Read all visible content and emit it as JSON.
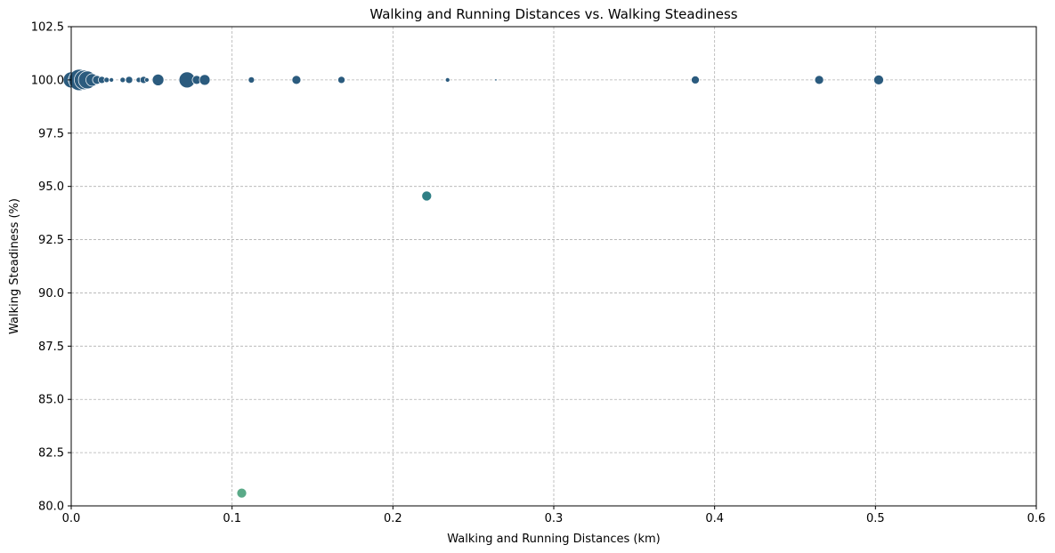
{
  "chart_data": {
    "type": "scatter",
    "title": "Walking and Running Distances vs. Walking Steadiness",
    "xlabel": "Walking and Running Distances (km)",
    "ylabel": "Walking Steadiness (%)",
    "xlim": [
      0.0,
      0.6
    ],
    "ylim": [
      80.0,
      102.5
    ],
    "xticks": [
      "0.0",
      "0.1",
      "0.2",
      "0.3",
      "0.4",
      "0.5",
      "0.6"
    ],
    "yticks": [
      "80.0",
      "82.5",
      "85.0",
      "87.5",
      "90.0",
      "92.5",
      "95.0",
      "97.5",
      "100.0",
      "102.5"
    ],
    "grid": true,
    "colors": {
      "high": "#2b5b7e",
      "mid": "#2f7f85",
      "low": "#5aaa88"
    },
    "points": [
      {
        "x": 0.0,
        "y": 100.0,
        "s": 9,
        "c": "high"
      },
      {
        "x": 0.002,
        "y": 100.0,
        "s": 7,
        "c": "high"
      },
      {
        "x": 0.005,
        "y": 100.0,
        "s": 12,
        "c": "high"
      },
      {
        "x": 0.008,
        "y": 100.0,
        "s": 11,
        "c": "high"
      },
      {
        "x": 0.01,
        "y": 100.0,
        "s": 10,
        "c": "high"
      },
      {
        "x": 0.013,
        "y": 100.0,
        "s": 7,
        "c": "high"
      },
      {
        "x": 0.016,
        "y": 100.0,
        "s": 5,
        "c": "high"
      },
      {
        "x": 0.019,
        "y": 100.0,
        "s": 4,
        "c": "high"
      },
      {
        "x": 0.022,
        "y": 100.0,
        "s": 3,
        "c": "high"
      },
      {
        "x": 0.025,
        "y": 100.0,
        "s": 2.5,
        "c": "high"
      },
      {
        "x": 0.032,
        "y": 100.0,
        "s": 3,
        "c": "high"
      },
      {
        "x": 0.036,
        "y": 100.0,
        "s": 4,
        "c": "high"
      },
      {
        "x": 0.042,
        "y": 100.0,
        "s": 3,
        "c": "high"
      },
      {
        "x": 0.045,
        "y": 100.0,
        "s": 4,
        "c": "high"
      },
      {
        "x": 0.047,
        "y": 100.0,
        "s": 2.5,
        "c": "high"
      },
      {
        "x": 0.054,
        "y": 100.0,
        "s": 6.5,
        "c": "high"
      },
      {
        "x": 0.072,
        "y": 100.0,
        "s": 9,
        "c": "high"
      },
      {
        "x": 0.078,
        "y": 100.0,
        "s": 5,
        "c": "high"
      },
      {
        "x": 0.083,
        "y": 100.0,
        "s": 6,
        "c": "high"
      },
      {
        "x": 0.112,
        "y": 100.0,
        "s": 3.5,
        "c": "high"
      },
      {
        "x": 0.14,
        "y": 100.0,
        "s": 5,
        "c": "high"
      },
      {
        "x": 0.168,
        "y": 100.0,
        "s": 4,
        "c": "high"
      },
      {
        "x": 0.234,
        "y": 100.0,
        "s": 2.5,
        "c": "high"
      },
      {
        "x": 0.264,
        "y": 100.0,
        "s": 1.2,
        "c": "high"
      },
      {
        "x": 0.388,
        "y": 100.0,
        "s": 4.5,
        "c": "high"
      },
      {
        "x": 0.465,
        "y": 100.0,
        "s": 5,
        "c": "high"
      },
      {
        "x": 0.502,
        "y": 100.0,
        "s": 5.5,
        "c": "high"
      },
      {
        "x": 0.221,
        "y": 94.55,
        "s": 5.5,
        "c": "mid"
      },
      {
        "x": 0.106,
        "y": 80.6,
        "s": 5.5,
        "c": "low"
      }
    ]
  }
}
